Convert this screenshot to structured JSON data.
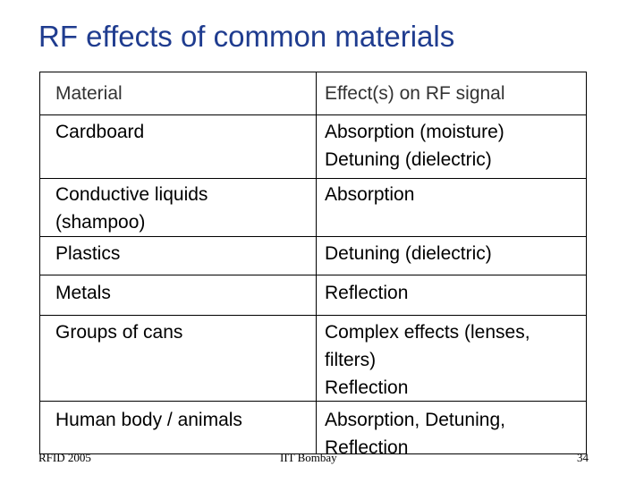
{
  "slide": {
    "title": "RF effects of common materials"
  },
  "table": {
    "headers": [
      "Material",
      "Effect(s) on RF signal"
    ],
    "rows": [
      {
        "material": [
          "Cardboard"
        ],
        "effects": [
          "Absorption (moisture)",
          "Detuning (dielectric)"
        ]
      },
      {
        "material": [
          "Conductive liquids",
          "(shampoo)"
        ],
        "effects": [
          "Absorption"
        ]
      },
      {
        "material": [
          "Plastics"
        ],
        "effects": [
          "Detuning (dielectric)"
        ]
      },
      {
        "material": [
          "Metals"
        ],
        "effects": [
          "Reflection"
        ]
      },
      {
        "material": [
          "Groups of cans"
        ],
        "effects": [
          "Complex effects (lenses,",
          "filters)",
          "Reflection"
        ]
      },
      {
        "material": [
          "Human body / animals"
        ],
        "effects": [
          "Absorption, Detuning,",
          "Reflection"
        ]
      }
    ]
  },
  "footer": {
    "left": "RFID 2005",
    "center": "IIT Bombay",
    "page_number": "34"
  }
}
